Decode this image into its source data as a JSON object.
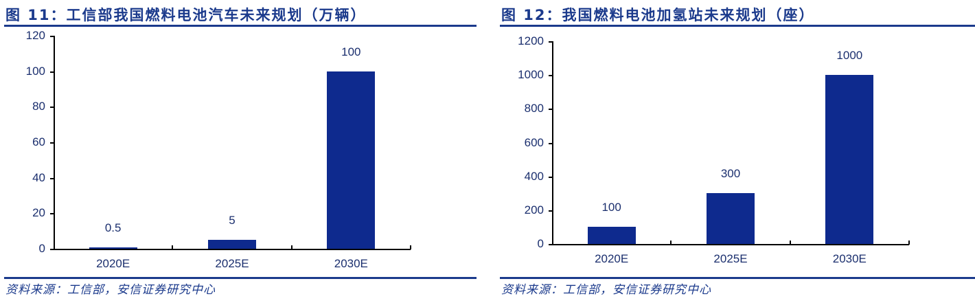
{
  "left": {
    "title": "图 11：工信部我国燃料电池汽车未来规划（万辆）",
    "footer": "资料来源：工信部，安信证券研究中心"
  },
  "right": {
    "title": "图 12：我国燃料电池加氢站未来规划（座）",
    "footer": "资料来源：工信部，安信证券研究中心"
  },
  "colors": {
    "bar": "#0e2a8e",
    "title": "#1b3a8c",
    "text": "#1b2f6e"
  },
  "chart_data": [
    {
      "type": "bar",
      "title": "图 11：工信部我国燃料电池汽车未来规划（万辆）",
      "categories": [
        "2020E",
        "2025E",
        "2030E"
      ],
      "values": [
        0.5,
        5,
        100
      ],
      "value_labels": [
        "0.5",
        "5",
        "100"
      ],
      "yticks": [
        "0",
        "20",
        "40",
        "60",
        "80",
        "100",
        "120"
      ],
      "ylim": [
        0,
        120
      ],
      "xlabel": "",
      "ylabel": "",
      "grid": false,
      "source": "资料来源：工信部，安信证券研究中心"
    },
    {
      "type": "bar",
      "title": "图 12：我国燃料电池加氢站未来规划（座）",
      "categories": [
        "2020E",
        "2025E",
        "2030E"
      ],
      "values": [
        100,
        300,
        1000
      ],
      "value_labels": [
        "100",
        "300",
        "1000"
      ],
      "yticks": [
        "0",
        "200",
        "400",
        "600",
        "800",
        "1000",
        "1200"
      ],
      "ylim": [
        0,
        1200
      ],
      "xlabel": "",
      "ylabel": "",
      "grid": false,
      "source": "资料来源：工信部，安信证券研究中心"
    }
  ]
}
